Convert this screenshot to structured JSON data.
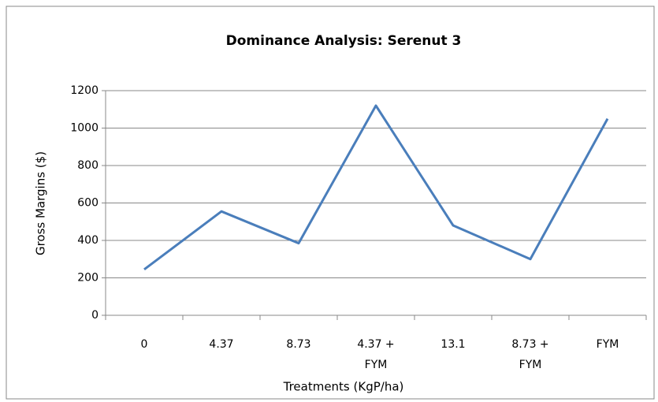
{
  "chart_data": {
    "type": "line",
    "title": "Dominance Analysis: Serenut 3",
    "x_label": "Treatments (KgP/ha)",
    "y_label": "Gross Margins ($)",
    "categories": [
      "0",
      "4.37",
      "8.73",
      "4.37 + FYM",
      "13.1",
      "8.73 + FYM",
      "FYM"
    ],
    "series": [
      {
        "name": "Gross Margins",
        "color": "#4a7ebb",
        "values": [
          245,
          555,
          385,
          1120,
          480,
          300,
          1050
        ]
      }
    ],
    "ylim": [
      0,
      1200
    ],
    "yticks": [
      0,
      200,
      400,
      600,
      800,
      1000,
      1200
    ],
    "grid": true
  }
}
